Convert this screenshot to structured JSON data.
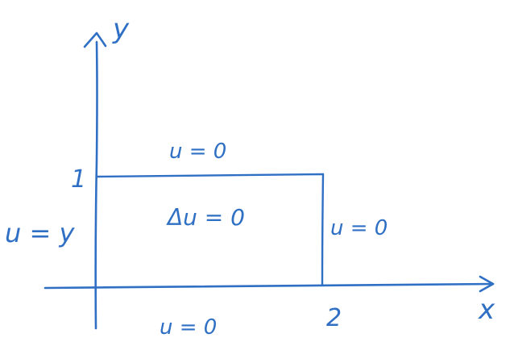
{
  "colors": {
    "background": "#ffffff",
    "ink": "#2f6fc4"
  },
  "axes": {
    "x_label": "x",
    "y_label": "y"
  },
  "ticks": {
    "x_tick": "2",
    "y_tick": "1"
  },
  "boundary_conditions": {
    "top": "u = 0",
    "right": "u = 0",
    "bottom": "u = 0",
    "left": "u = y"
  },
  "equation": "Δu = 0"
}
